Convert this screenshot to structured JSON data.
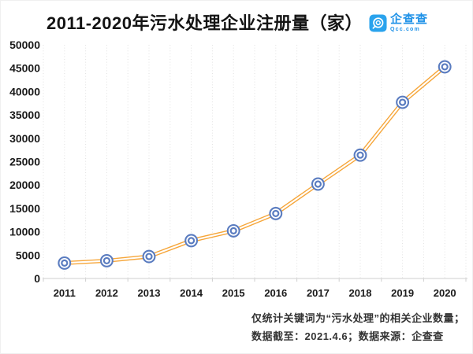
{
  "header": {
    "title": "2011-2020年污水处理企业注册量（家）",
    "logo": {
      "brand": "企查查",
      "domain": "Qcc.com",
      "icon": "qcc-circle-icon",
      "icon_bg_color": "#2aa3ed",
      "text_color": "#2193e8"
    }
  },
  "chart_data": {
    "type": "line",
    "title": "2011-2020年污水处理企业注册量（家）",
    "categories": [
      "2011",
      "2012",
      "2013",
      "2014",
      "2015",
      "2016",
      "2017",
      "2018",
      "2019",
      "2020"
    ],
    "values": [
      3300,
      3800,
      4700,
      8100,
      10200,
      13900,
      20200,
      26400,
      37700,
      45300
    ],
    "xlabel": "",
    "ylabel": "",
    "ylim": [
      0,
      50000
    ],
    "ytick_step": 5000,
    "ytick_labels": [
      "0",
      "5000",
      "10000",
      "15000",
      "20000",
      "25000",
      "30000",
      "35000",
      "40000",
      "45000",
      "50000"
    ],
    "grid": "vertical-dotted",
    "legend_position": "none",
    "line_color": "#f6a63a",
    "line_style": "double-stroke",
    "marker": "double-circle",
    "marker_color": "#5a7cc0",
    "axis_color": "#cfcfcf",
    "gridline_color": "#e2e2e2"
  },
  "footer": {
    "line1": "仅统计关键词为“污水处理”的相关企业数量；",
    "line2": "数据截至：2021.4.6；数据来源：企查查"
  }
}
